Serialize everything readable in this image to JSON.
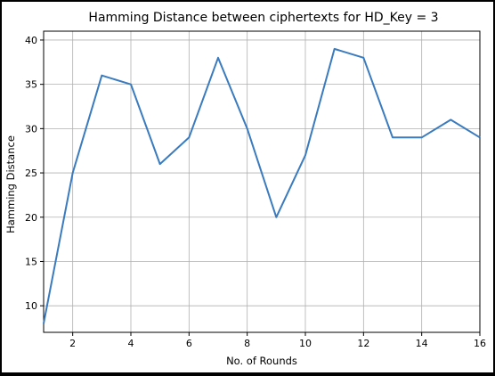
{
  "chart_data": {
    "type": "line",
    "title": "Hamming Distance between ciphertexts for HD_Key = 3",
    "xlabel": "No. of Rounds",
    "ylabel": "Hamming Distance",
    "xlim": [
      1,
      16
    ],
    "ylim": [
      7,
      41
    ],
    "xticks": [
      2,
      4,
      6,
      8,
      10,
      12,
      14,
      16
    ],
    "yticks": [
      10,
      15,
      20,
      25,
      30,
      35,
      40
    ],
    "grid": true,
    "line_color": "#3a7bbf",
    "series": [
      {
        "x": [
          1,
          2,
          3,
          4,
          5,
          6,
          7,
          8,
          9,
          10,
          11,
          12,
          13,
          14,
          15,
          16
        ],
        "values": [
          8,
          25,
          36,
          35,
          26,
          29,
          38,
          30,
          20,
          27,
          39,
          38,
          29,
          29,
          31,
          29
        ]
      }
    ]
  }
}
